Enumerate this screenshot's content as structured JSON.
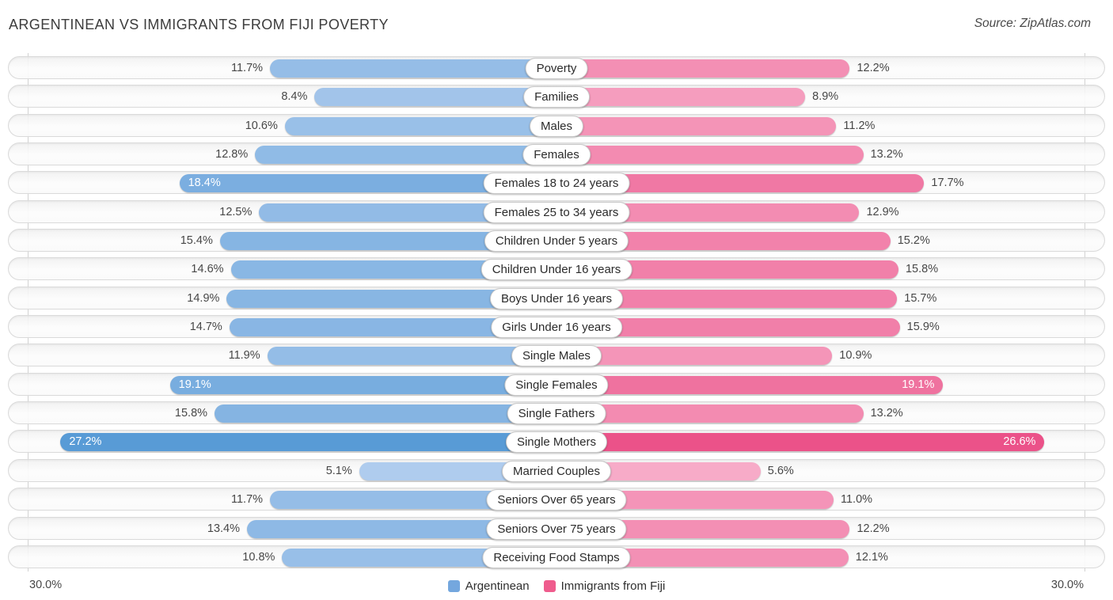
{
  "title": "ARGENTINEAN VS IMMIGRANTS FROM FIJI POVERTY",
  "source": "Source: ZipAtlas.com",
  "axis": {
    "left_label": "30.0%",
    "right_label": "30.0%",
    "max_percent": 30
  },
  "legend": {
    "items": [
      {
        "label": "Argentinean",
        "color": "#74A7DE"
      },
      {
        "label": "Immigrants from Fiji",
        "color": "#EF5C8D"
      }
    ]
  },
  "colors": {
    "blue_light": "#AFCCEE",
    "blue_dark": "#579AD6",
    "pink_light": "#F7AECA",
    "pink_dark": "#EB4E86",
    "value_text": "#474747",
    "inside_value_text": "#FFFFFF"
  },
  "chart_data": {
    "type": "bar",
    "orientation": "mirrored-horizontal",
    "title": "ARGENTINEAN VS IMMIGRANTS FROM FIJI POVERTY",
    "value_suffix": "%",
    "axis_range": [
      0,
      30
    ],
    "legend_position": "bottom-center",
    "grid": "edge-ticks-only",
    "categories": [
      "Poverty",
      "Families",
      "Males",
      "Females",
      "Females 18 to 24 years",
      "Females 25 to 34 years",
      "Children Under 5 years",
      "Children Under 16 years",
      "Boys Under 16 years",
      "Girls Under 16 years",
      "Single Males",
      "Single Females",
      "Single Fathers",
      "Single Mothers",
      "Married Couples",
      "Seniors Over 65 years",
      "Seniors Over 75 years",
      "Receiving Food Stamps"
    ],
    "series": [
      {
        "name": "Argentinean",
        "values": [
          11.7,
          8.4,
          10.6,
          12.8,
          18.4,
          12.5,
          15.4,
          14.6,
          14.9,
          14.7,
          11.9,
          19.1,
          15.8,
          27.2,
          5.1,
          11.7,
          13.4,
          10.8
        ]
      },
      {
        "name": "Immigrants from Fiji",
        "values": [
          12.2,
          8.9,
          11.2,
          13.2,
          17.7,
          12.9,
          15.2,
          15.8,
          15.7,
          15.9,
          10.9,
          19.1,
          13.2,
          26.6,
          5.6,
          11.0,
          12.2,
          12.1
        ]
      }
    ]
  }
}
